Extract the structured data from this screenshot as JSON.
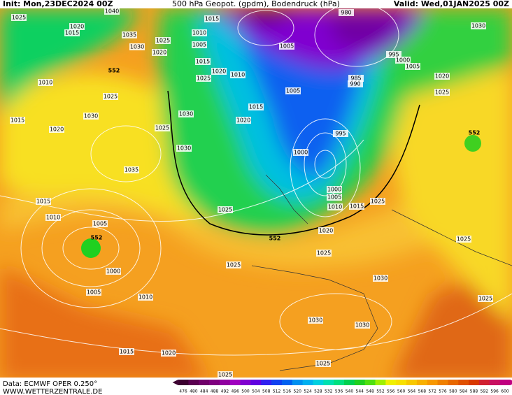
{
  "header": {
    "init": "Init: Mon,23DEC2024 00Z",
    "title": "500 hPa Geopot. (gpdm), Bodendruck (hPa)",
    "valid": "Valid: Wed,01JAN2025 00Z"
  },
  "footer": {
    "data": "Data: ECMWF OPER 0.250°",
    "site": "WWW.WETTERZENTRALE.DE"
  },
  "isobar_labels": [
    1040,
    1025,
    1020,
    1015,
    1035,
    1025,
    1030,
    1020,
    1010,
    1005,
    1015,
    980,
    1005,
    995,
    1000,
    1005,
    1030,
    1015,
    1020,
    1010,
    1025,
    1010,
    1025,
    985,
    990,
    1020,
    1025,
    1005,
    1015,
    1030,
    1020,
    1030,
    1015,
    1020,
    1025,
    995,
    1000,
    1030,
    1035,
    1000,
    1005,
    1010,
    1015,
    1025,
    1025,
    1015,
    1010,
    1005,
    1020,
    1025,
    1025,
    1000,
    1025,
    1030,
    1005,
    1010,
    1025,
    1030,
    1030,
    1015,
    1020,
    1025,
    1025
  ],
  "geopotential_labels": [
    552,
    552,
    552,
    552
  ],
  "color_scale": {
    "values": [
      476,
      480,
      484,
      488,
      492,
      496,
      500,
      504,
      508,
      512,
      516,
      520,
      524,
      528,
      532,
      536,
      540,
      544,
      548,
      552,
      556,
      560,
      564,
      568,
      572,
      576,
      580,
      584,
      588,
      592,
      596,
      600
    ],
    "colors": [
      "#3c0030",
      "#5a0050",
      "#70006a",
      "#800080",
      "#9000a0",
      "#a000c0",
      "#8000d0",
      "#6000e0",
      "#3020f0",
      "#1040f0",
      "#0060f0",
      "#0090f0",
      "#00b0f0",
      "#00d0e0",
      "#00e0b0",
      "#00e080",
      "#00d050",
      "#20d020",
      "#50e010",
      "#a0f000",
      "#f0f000",
      "#f8e000",
      "#f8c800",
      "#f8b000",
      "#f89800",
      "#f08000",
      "#e86800",
      "#e05000",
      "#d83800",
      "#d02030",
      "#c81060",
      "#c00080"
    ]
  }
}
